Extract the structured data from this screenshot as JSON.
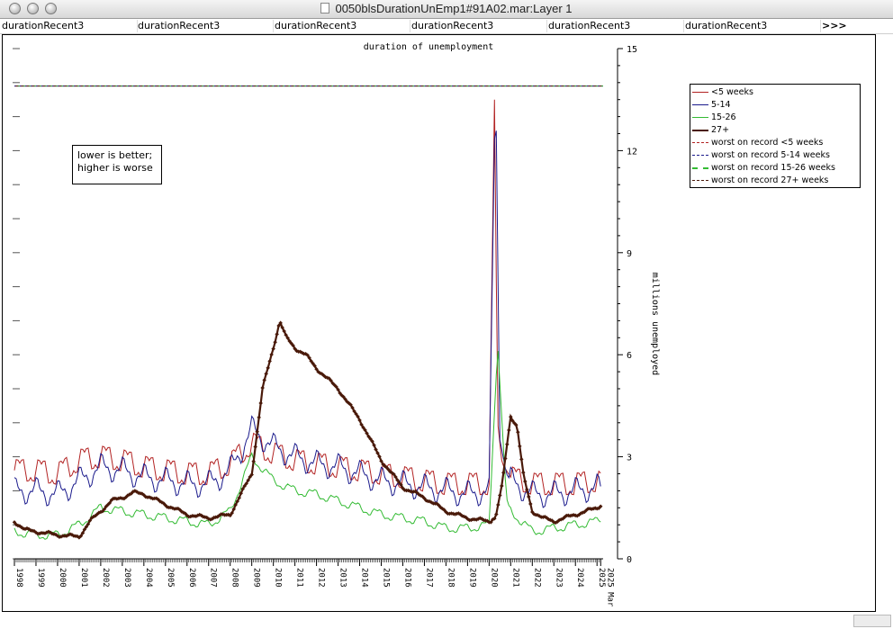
{
  "window": {
    "title": "0050blsDurationUnEmp1#91A02.mar:Layer 1"
  },
  "tabs": [
    "durationRecent3",
    "durationRecent3",
    "durationRecent3",
    "durationRecent3",
    "durationRecent3",
    "durationRecent3"
  ],
  "tabs_more": ">>>",
  "annotation": {
    "line1": "lower is better;",
    "line2": "higher is worse"
  },
  "chart_data": {
    "type": "line",
    "title": "duration of unemployment",
    "xlabel": "",
    "ylabel": "millions unemployed",
    "ylim": [
      0,
      15
    ],
    "yticks": [
      "0",
      "3",
      "6",
      "9",
      "12",
      "15"
    ],
    "xlim": [
      1998.0,
      2025.2
    ],
    "xticks": [
      "1998",
      "1999",
      "2000",
      "2001",
      "2002",
      "2003",
      "2004",
      "2005",
      "2006",
      "2007",
      "2008",
      "2009",
      "2010",
      "2011",
      "2012",
      "2013",
      "2014",
      "2015",
      "2016",
      "2017",
      "2018",
      "2019",
      "2020",
      "2021",
      "2022",
      "2023",
      "2024",
      "2025",
      "2025 Mar"
    ],
    "legend_position": "top-right",
    "series": [
      {
        "name": "<5 weeks",
        "color": "#b22222",
        "style": "solid",
        "x": [
          1998,
          1999,
          2000,
          2001,
          2002,
          2003,
          2004,
          2005,
          2006,
          2007,
          2008,
          2009,
          2010,
          2011,
          2012,
          2013,
          2014,
          2015,
          2016,
          2017,
          2018,
          2019,
          2020,
          2020.25,
          2020.4,
          2020.6,
          2021,
          2022,
          2023,
          2024,
          2025,
          2025.2
        ],
        "values": [
          2.6,
          2.6,
          2.5,
          2.9,
          3.0,
          2.9,
          2.7,
          2.6,
          2.5,
          2.5,
          2.8,
          3.4,
          3.1,
          2.9,
          2.8,
          2.7,
          2.6,
          2.5,
          2.4,
          2.3,
          2.2,
          2.2,
          2.2,
          13.5,
          4.0,
          2.8,
          2.4,
          2.2,
          2.2,
          2.2,
          2.3,
          2.2
        ],
        "amp": 0.35
      },
      {
        "name": "5-14",
        "color": "#1a1a8c",
        "style": "solid",
        "x": [
          1998,
          1999,
          2000,
          2001,
          2002,
          2003,
          2004,
          2005,
          2006,
          2007,
          2008,
          2009,
          2010,
          2011,
          2012,
          2013,
          2014,
          2015,
          2016,
          2017,
          2018,
          2019,
          2020,
          2020.3,
          2020.5,
          2020.8,
          2021,
          2022,
          2023,
          2024,
          2025,
          2025.2
        ],
        "values": [
          2.0,
          2.0,
          1.9,
          2.3,
          2.7,
          2.6,
          2.4,
          2.3,
          2.2,
          2.2,
          2.6,
          3.8,
          3.3,
          3.0,
          2.8,
          2.7,
          2.5,
          2.3,
          2.2,
          2.1,
          2.0,
          1.9,
          2.0,
          14.4,
          3.5,
          2.5,
          2.3,
          1.9,
          1.9,
          2.0,
          2.1,
          2.0
        ],
        "amp": 0.3
      },
      {
        "name": "15-26",
        "color": "#33bb33",
        "style": "solid",
        "x": [
          1998,
          1999,
          2000,
          2001,
          2002,
          2003,
          2004,
          2005,
          2006,
          2007,
          2008,
          2009,
          2010,
          2011,
          2012,
          2013,
          2014,
          2015,
          2016,
          2017,
          2018,
          2019,
          2020,
          2020.4,
          2020.6,
          2020.8,
          2021,
          2022,
          2023,
          2024,
          2025,
          2025.2
        ],
        "values": [
          0.8,
          0.7,
          0.7,
          1.0,
          1.5,
          1.4,
          1.3,
          1.2,
          1.1,
          1.0,
          1.4,
          3.0,
          2.3,
          2.0,
          1.9,
          1.7,
          1.5,
          1.3,
          1.2,
          1.1,
          0.9,
          0.9,
          1.0,
          6.3,
          4.0,
          1.8,
          1.4,
          0.8,
          0.9,
          1.0,
          1.1,
          1.2
        ],
        "amp": 0.12
      },
      {
        "name": "27+",
        "color": "#4a1a0a",
        "style": "bold-markers",
        "x": [
          1998,
          1998.5,
          1999,
          2000,
          2001,
          2001.5,
          2002,
          2002.5,
          2003,
          2003.5,
          2004,
          2005,
          2006,
          2007,
          2008,
          2009,
          2009.5,
          2010,
          2010.3,
          2010.6,
          2011,
          2011.5,
          2012,
          2013,
          2014,
          2015,
          2016,
          2017,
          2018,
          2019,
          2020,
          2020.3,
          2020.6,
          2021,
          2021.3,
          2021.6,
          2022,
          2022.5,
          2023,
          2024,
          2025,
          2025.2
        ],
        "values": [
          1.1,
          0.85,
          0.8,
          0.7,
          0.65,
          1.1,
          1.4,
          1.7,
          1.8,
          1.95,
          1.9,
          1.6,
          1.3,
          1.2,
          1.3,
          2.5,
          5.0,
          6.2,
          7.0,
          6.5,
          6.2,
          6.0,
          5.6,
          5.0,
          4.1,
          2.9,
          2.1,
          1.8,
          1.4,
          1.2,
          1.1,
          1.2,
          2.2,
          4.2,
          3.9,
          2.4,
          1.4,
          1.2,
          1.1,
          1.3,
          1.5,
          1.6
        ],
        "amp": 0.04
      },
      {
        "name": "worst on record <5 weeks",
        "color": "#b22222",
        "style": "dashed",
        "value": 13.9
      },
      {
        "name": "worst on record 5-14 weeks",
        "color": "#1a1a8c",
        "style": "dashed",
        "value": 13.9
      },
      {
        "name": "worst on record 15-26 weeks",
        "color": "#33bb33",
        "style": "dashed",
        "value": 13.9
      },
      {
        "name": "worst on record 27+ weeks",
        "color": "#4a1a0a",
        "style": "dashed",
        "value": 13.9
      }
    ]
  }
}
